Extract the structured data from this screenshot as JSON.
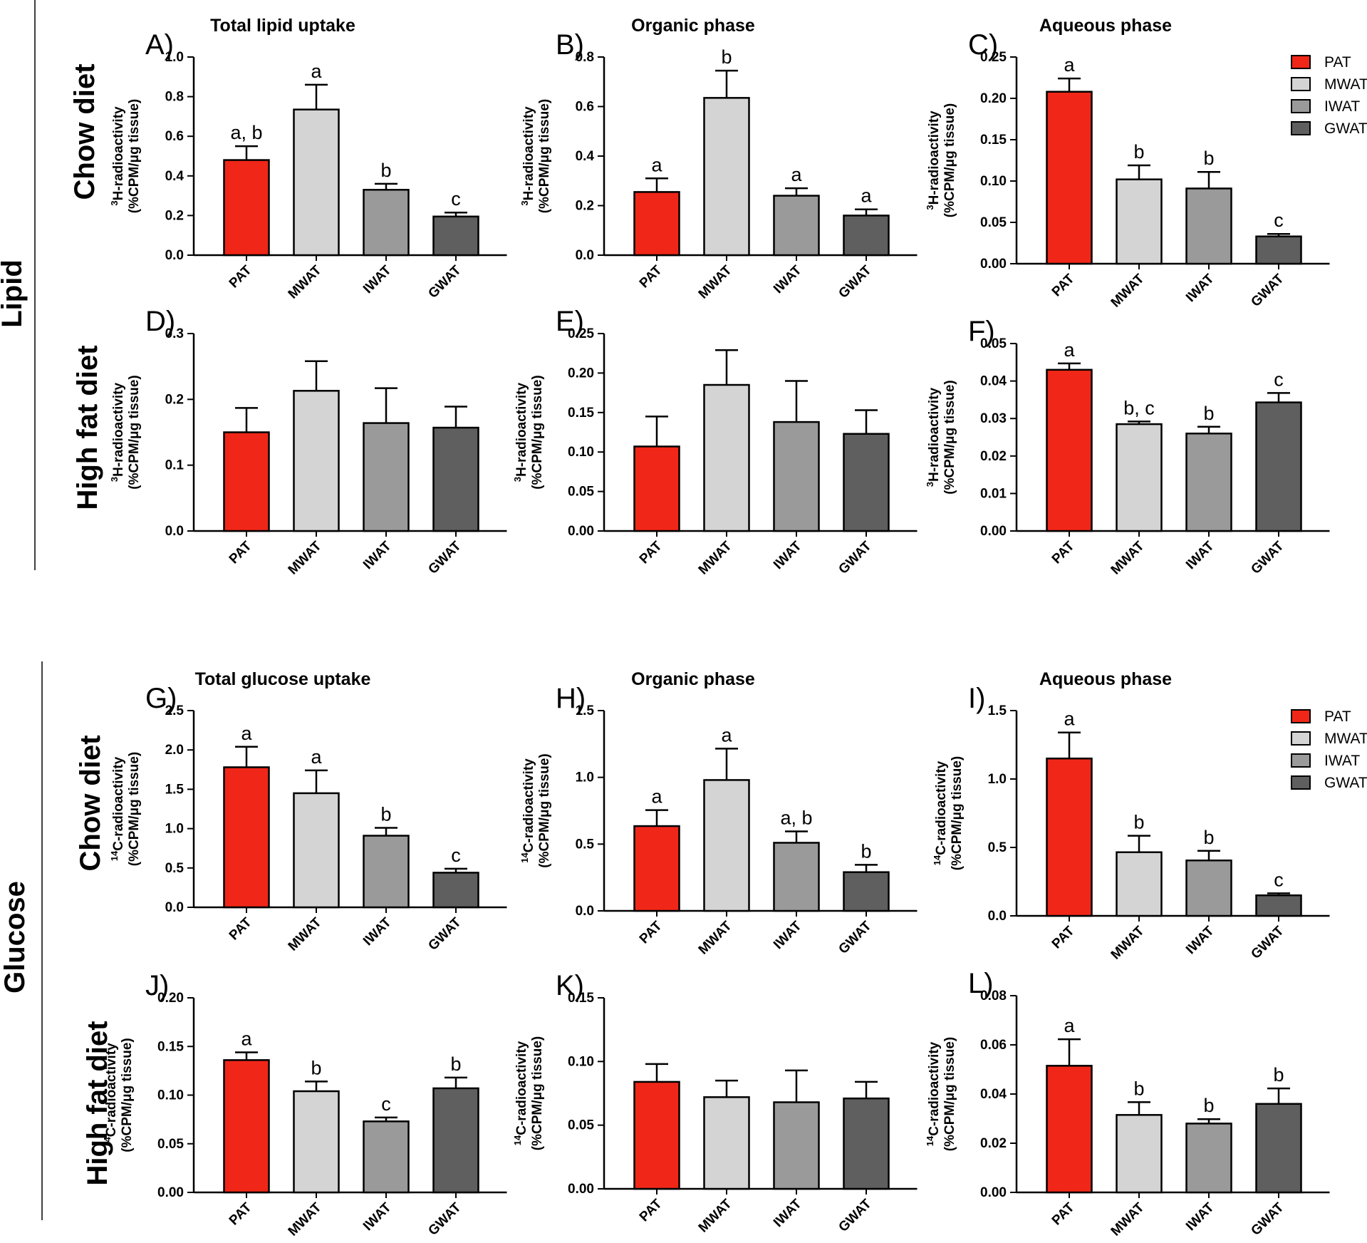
{
  "groups": [
    "Lipid",
    "Glucose"
  ],
  "diets": [
    "Chow diet",
    "High fat diet"
  ],
  "colors": {
    "PAT": "#f02718",
    "MWAT": "#d4d4d4",
    "IWAT": "#9a9a9a",
    "GWAT": "#5f5f5f"
  },
  "legend": [
    "PAT",
    "MWAT",
    "IWAT",
    "GWAT"
  ],
  "chart_data": [
    {
      "id": "A",
      "letter": "A)",
      "type": "bar",
      "title": "Total lipid uptake",
      "iso": "3",
      "yl1": "H-radioactivity",
      "yl2": "(%CPM/μg tissue)",
      "categories": [
        "PAT",
        "MWAT",
        "IWAT",
        "GWAT"
      ],
      "values": [
        0.48,
        0.735,
        0.33,
        0.195
      ],
      "errors": [
        0.07,
        0.125,
        0.03,
        0.02
      ],
      "letters": [
        "a, b",
        "a",
        "b",
        "c"
      ],
      "ylim": [
        0,
        1.0
      ],
      "ticks": [
        "0.0",
        "0.2",
        "0.4",
        "0.6",
        "0.8",
        "1.0"
      ]
    },
    {
      "id": "B",
      "letter": "B)",
      "type": "bar",
      "title": "Organic phase",
      "iso": "3",
      "yl1": "H-radioactivity",
      "yl2": "(%CPM/μg tissue)",
      "categories": [
        "PAT",
        "MWAT",
        "IWAT",
        "GWAT"
      ],
      "values": [
        0.255,
        0.635,
        0.24,
        0.16
      ],
      "errors": [
        0.055,
        0.11,
        0.03,
        0.025
      ],
      "letters": [
        "a",
        "b",
        "a",
        "a"
      ],
      "ylim": [
        0,
        0.8
      ],
      "ticks": [
        "0.0",
        "0.2",
        "0.4",
        "0.6",
        "0.8"
      ]
    },
    {
      "id": "C",
      "letter": "C)",
      "type": "bar",
      "title": "Aqueous phase",
      "iso": "3",
      "yl1": "H-radioactivity",
      "yl2": "(%CPM/μg tissue)",
      "categories": [
        "PAT",
        "MWAT",
        "IWAT",
        "GWAT"
      ],
      "values": [
        0.208,
        0.102,
        0.091,
        0.033
      ],
      "errors": [
        0.016,
        0.017,
        0.02,
        0.003
      ],
      "letters": [
        "a",
        "b",
        "b",
        "c"
      ],
      "ylim": [
        0,
        0.25
      ],
      "ticks": [
        "0.00",
        "0.05",
        "0.10",
        "0.15",
        "0.20",
        "0.25"
      ],
      "legend": true
    },
    {
      "id": "D",
      "letter": "D)",
      "type": "bar",
      "title": "",
      "iso": "3",
      "yl1": "H-radioactivity",
      "yl2": "(%CPM/μg tissue)",
      "categories": [
        "PAT",
        "MWAT",
        "IWAT",
        "GWAT"
      ],
      "values": [
        0.15,
        0.213,
        0.164,
        0.157
      ],
      "errors": [
        0.037,
        0.045,
        0.053,
        0.032
      ],
      "letters": [
        "",
        "",
        "",
        ""
      ],
      "ylim": [
        0,
        0.3
      ],
      "ticks": [
        "0.0",
        "0.1",
        "0.2",
        "0.3"
      ]
    },
    {
      "id": "E",
      "letter": "E)",
      "type": "bar",
      "title": "",
      "iso": "3",
      "yl1": "H-radioactivity",
      "yl2": "(%CPM/μg tissue)",
      "categories": [
        "PAT",
        "MWAT",
        "IWAT",
        "GWAT"
      ],
      "values": [
        0.107,
        0.185,
        0.138,
        0.123
      ],
      "errors": [
        0.038,
        0.044,
        0.052,
        0.03
      ],
      "letters": [
        "",
        "",
        "",
        ""
      ],
      "ylim": [
        0,
        0.25
      ],
      "ticks": [
        "0.00",
        "0.05",
        "0.10",
        "0.15",
        "0.20",
        "0.25"
      ]
    },
    {
      "id": "F",
      "letter": "F)",
      "type": "bar",
      "title": "",
      "iso": "3",
      "yl1": "H-radioactivity",
      "yl2": "(%CPM/μg tissue)",
      "categories": [
        "PAT",
        "MWAT",
        "IWAT",
        "GWAT"
      ],
      "values": [
        0.043,
        0.0285,
        0.026,
        0.0343
      ],
      "errors": [
        0.0017,
        0.0007,
        0.0018,
        0.0025
      ],
      "letters": [
        "a",
        "b, c",
        "b",
        "c"
      ],
      "ylim": [
        0,
        0.05
      ],
      "ticks": [
        "0.00",
        "0.01",
        "0.02",
        "0.03",
        "0.04",
        "0.05"
      ]
    },
    {
      "id": "G",
      "letter": "G)",
      "type": "bar",
      "title": "Total glucose uptake",
      "iso": "14",
      "yl1": "C-radioactivity",
      "yl2": "(%CPM/μg tissue)",
      "categories": [
        "PAT",
        "MWAT",
        "IWAT",
        "GWAT"
      ],
      "values": [
        1.78,
        1.45,
        0.91,
        0.44
      ],
      "errors": [
        0.26,
        0.29,
        0.1,
        0.05
      ],
      "letters": [
        "a",
        "a",
        "b",
        "c"
      ],
      "ylim": [
        0,
        2.5
      ],
      "ticks": [
        "0.0",
        "0.5",
        "1.0",
        "1.5",
        "2.0",
        "2.5"
      ]
    },
    {
      "id": "H",
      "letter": "H)",
      "type": "bar",
      "title": "Organic phase",
      "iso": "14",
      "yl1": "C-radioactivity",
      "yl2": "(%CPM/μg tissue)",
      "categories": [
        "PAT",
        "MWAT",
        "IWAT",
        "GWAT"
      ],
      "values": [
        0.635,
        0.98,
        0.51,
        0.29
      ],
      "errors": [
        0.12,
        0.235,
        0.085,
        0.055
      ],
      "letters": [
        "a",
        "a",
        "a, b",
        "b"
      ],
      "ylim": [
        0,
        1.5
      ],
      "ticks": [
        "0.0",
        "0.5",
        "1.0",
        "1.5"
      ]
    },
    {
      "id": "I",
      "letter": "I)",
      "type": "bar",
      "title": "Aqueous phase",
      "iso": "14",
      "yl1": "C-radioactivity",
      "yl2": "(%CPM/μg tissue)",
      "categories": [
        "PAT",
        "MWAT",
        "IWAT",
        "GWAT"
      ],
      "values": [
        1.15,
        0.465,
        0.405,
        0.15
      ],
      "errors": [
        0.19,
        0.12,
        0.07,
        0.015
      ],
      "letters": [
        "a",
        "b",
        "b",
        "c"
      ],
      "ylim": [
        0,
        1.5
      ],
      "ticks": [
        "0.0",
        "0.5",
        "1.0",
        "1.5"
      ],
      "legend": true
    },
    {
      "id": "J",
      "letter": "J)",
      "type": "bar",
      "title": "",
      "iso": "14",
      "yl1": "C-radioactivity",
      "yl2": "(%CPM/μg tissue)",
      "categories": [
        "PAT",
        "MWAT",
        "IWAT",
        "GWAT"
      ],
      "values": [
        0.136,
        0.104,
        0.073,
        0.107
      ],
      "errors": [
        0.008,
        0.01,
        0.004,
        0.011
      ],
      "letters": [
        "a",
        "b",
        "c",
        "b"
      ],
      "ylim": [
        0,
        0.2
      ],
      "ticks": [
        "0.00",
        "0.05",
        "0.10",
        "0.15",
        "0.20"
      ]
    },
    {
      "id": "K",
      "letter": "K)",
      "type": "bar",
      "title": "",
      "iso": "14",
      "yl1": "C-radioactivity",
      "yl2": "(%CPM/μg tissue)",
      "categories": [
        "PAT",
        "MWAT",
        "IWAT",
        "GWAT"
      ],
      "values": [
        0.084,
        0.072,
        0.068,
        0.071
      ],
      "errors": [
        0.014,
        0.013,
        0.025,
        0.013
      ],
      "letters": [
        "",
        "",
        "",
        ""
      ],
      "ylim": [
        0,
        0.15
      ],
      "ticks": [
        "0.00",
        "0.05",
        "0.10",
        "0.15"
      ]
    },
    {
      "id": "L",
      "letter": "L)",
      "type": "bar",
      "title": "",
      "iso": "14",
      "yl1": "C-radioactivity",
      "yl2": "(%CPM/μg tissue)",
      "categories": [
        "PAT",
        "MWAT",
        "IWAT",
        "GWAT"
      ],
      "values": [
        0.0515,
        0.0315,
        0.028,
        0.036
      ],
      "errors": [
        0.0108,
        0.0052,
        0.0018,
        0.0063
      ],
      "letters": [
        "a",
        "b",
        "b",
        "b"
      ],
      "ylim": [
        0,
        0.08
      ],
      "ticks": [
        "0.00",
        "0.02",
        "0.04",
        "0.06",
        "0.08"
      ]
    }
  ]
}
